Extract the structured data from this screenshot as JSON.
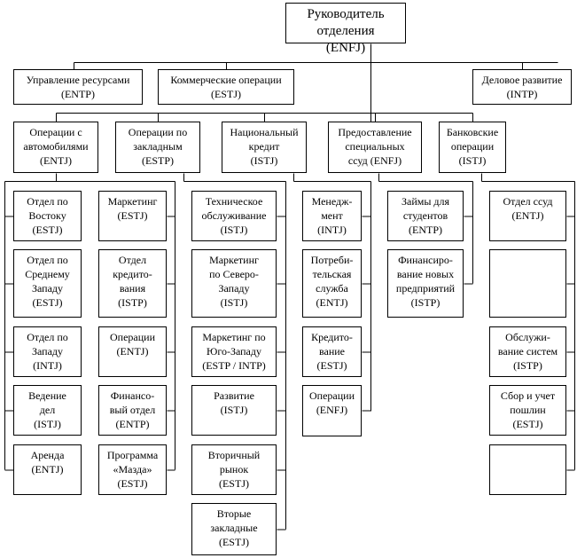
{
  "root": "Руководитель отделения\n(ENFJ)",
  "level1": [
    "Управление ресурсами\n(ENTP)",
    "Коммерческие операции\n(ESTJ)",
    "Деловое развитие\n(INTP)"
  ],
  "level2": [
    "Операции с\nавтомобилями\n(ENTJ)",
    "Операции по\nзакладным\n(ESTP)",
    "Национальный\nкредит\n(ISTJ)",
    "Предоставление\nспециальных\nссуд (ENFJ)",
    "Банковские\nоперации\n(ISTJ)"
  ],
  "units": {
    "auto_left": [
      "Отдел по\nВостоку\n(ESTJ)",
      "Отдел по\nСреднему\nЗападу\n(ESTJ)",
      "Отдел по\nЗападу\n(INTJ)",
      "Ведение\nдел\n(ISTJ)",
      "Аренда\n(ENTJ)"
    ],
    "auto_right": [
      "Маркетинг\n(ESTJ)",
      "Отдел\nкредито-\nвания\n(ISTP)",
      "Операции\n(ENTJ)",
      "Финансо-\nвый отдел\n(ENTP)",
      "Программа\n«Мазда»\n(ESTJ)"
    ],
    "mortgage": [
      "Техническое\nобслуживание\n(ISTJ)",
      "Маркетинг\nпо Северо-\nЗападу\n(ISTJ)",
      "Маркетинг по\nЮго-Западу\n(ESTP / INTP)",
      "Развитие\n(ISTJ)",
      "Вторичный\nрынок\n(ESTJ)",
      "Вторые\nзакладные\n(ESTJ)"
    ],
    "national": [
      "Менедж-\nмент\n(INTJ)",
      "Потреби-\nтельская\nслужба\n(ENTJ)",
      "Кредито-\nвание\n(ESTJ)",
      "Операции\n(ENFJ)"
    ],
    "special": [
      "Займы для\nстудентов\n(ENTP)",
      "Финансиро-\nвание новых\nпредприятий\n(ISTP)"
    ],
    "banking": [
      "Отдел ссуд\n(ENTJ)",
      "",
      "Обслужи-\nвание систем\n(ISTP)",
      "Сбор и учет\nпошлин\n(ESTJ)",
      ""
    ]
  }
}
